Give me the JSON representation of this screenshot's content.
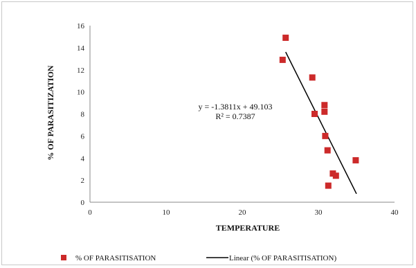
{
  "chart_data": {
    "type": "scatter",
    "xlabel": "TEMPERATURE",
    "ylabel": "% OF PARASITIZATION",
    "xlim": [
      0,
      40
    ],
    "ylim": [
      0,
      16
    ],
    "x_ticks": [
      "0",
      "10",
      "20",
      "30",
      "40"
    ],
    "y_ticks": [
      "0",
      "2",
      "4",
      "6",
      "8",
      "10",
      "12",
      "14",
      "16"
    ],
    "grid": false,
    "legend_position": "bottom",
    "series": [
      {
        "name": "% OF PARASITISATION",
        "marker": "square",
        "color": "#cc2a2a",
        "x": [
          25.3,
          25.7,
          29.2,
          29.5,
          30.8,
          30.8,
          30.9,
          31.2,
          31.3,
          31.9,
          32.3,
          34.9
        ],
        "y": [
          12.9,
          14.9,
          11.3,
          8.0,
          8.8,
          8.2,
          6.0,
          4.7,
          1.5,
          2.6,
          2.4,
          3.8
        ]
      }
    ],
    "trendline": {
      "name": "Linear (% OF PARASITISATION)",
      "slope": -1.3811,
      "intercept": 49.103,
      "x_range": [
        25.7,
        35.0
      ],
      "color": "#000000"
    },
    "annotation": {
      "equation": "y = -1.3811x + 49.103",
      "r_squared": "R² = 0.7387"
    },
    "legend": {
      "marker_label": "% OF PARASITISATION",
      "line_label": "Linear (% OF PARASITISATION)"
    }
  }
}
